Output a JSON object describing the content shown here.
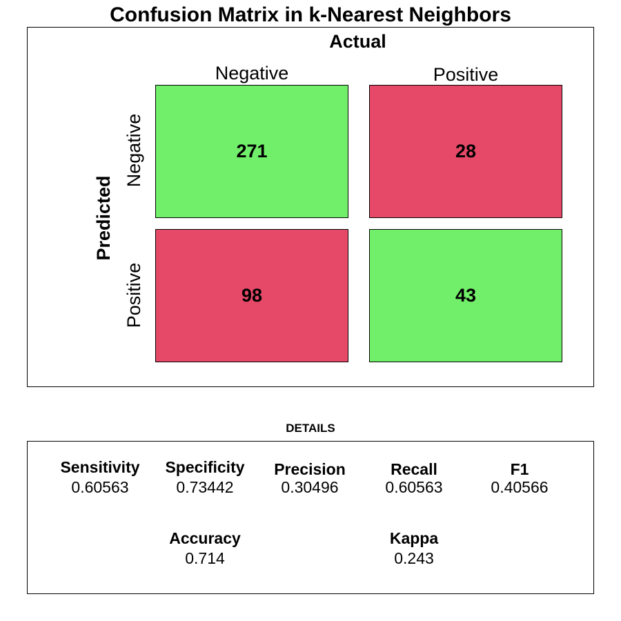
{
  "chart_data": {
    "type": "heatmap",
    "title": "Confusion Matrix in k-Nearest Neighbors",
    "xlabel": "Actual",
    "ylabel": "Predicted",
    "columns": [
      "Negative",
      "Positive"
    ],
    "rows": [
      "Negative",
      "Positive"
    ],
    "values": [
      [
        271,
        28
      ],
      [
        98,
        43
      ]
    ],
    "colors": {
      "correct": "#72ef6a",
      "incorrect": "#e64868"
    },
    "details_title": "DETAILS",
    "metrics": [
      {
        "name": "Sensitivity",
        "value": "0.60563"
      },
      {
        "name": "Specificity",
        "value": "0.73442"
      },
      {
        "name": "Precision",
        "value": "0.30496"
      },
      {
        "name": "Recall",
        "value": "0.60563"
      },
      {
        "name": "F1",
        "value": "0.40566"
      },
      {
        "name": "Accuracy",
        "value": "0.714"
      },
      {
        "name": "Kappa",
        "value": "0.243"
      }
    ]
  }
}
